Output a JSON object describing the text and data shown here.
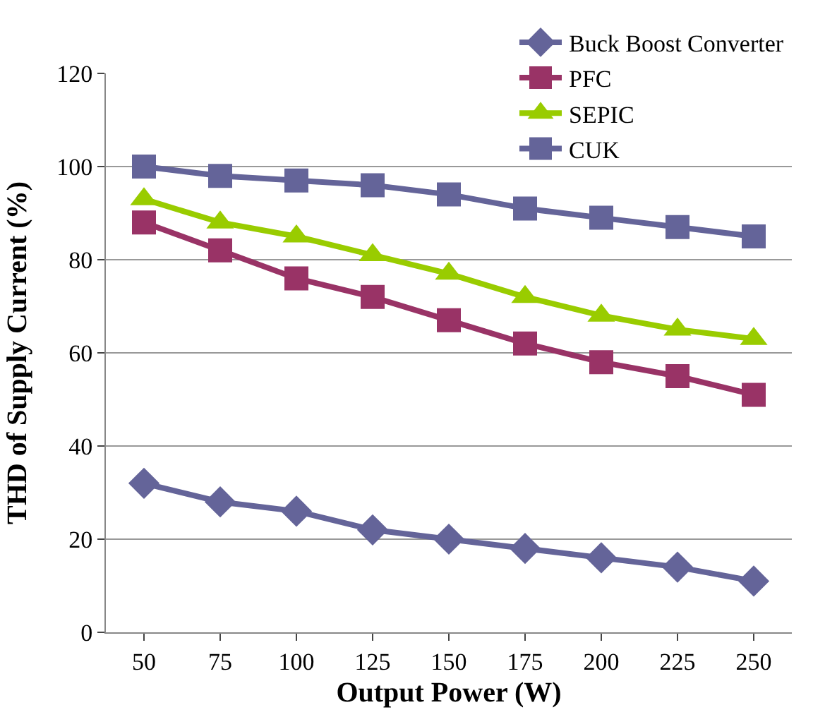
{
  "chart_data": {
    "type": "line",
    "xlabel": "Output Power (W)",
    "ylabel": "THD of Supply Current (%)",
    "categories": [
      "50",
      "75",
      "100",
      "125",
      "150",
      "175",
      "200",
      "225",
      "250"
    ],
    "series": [
      {
        "name": "Buck Boost Converter",
        "color": "#646499",
        "marker": "diamond",
        "values": [
          32,
          28,
          26,
          22,
          20,
          18,
          16,
          14,
          11
        ]
      },
      {
        "name": "PFC",
        "color": "#993366",
        "marker": "square",
        "values": [
          88,
          82,
          76,
          72,
          67,
          62,
          58,
          55,
          51
        ]
      },
      {
        "name": "SEPIC",
        "color": "#99cc00",
        "marker": "triangle",
        "values": [
          93,
          88,
          85,
          81,
          77,
          72,
          68,
          65,
          63
        ]
      },
      {
        "name": "CUK",
        "color": "#646499",
        "marker": "square",
        "values": [
          100,
          98,
          97,
          96,
          94,
          91,
          89,
          87,
          85
        ]
      }
    ],
    "ylim": [
      0,
      120
    ],
    "yticks": [
      0,
      20,
      40,
      60,
      80,
      100,
      120
    ],
    "grid": "y",
    "legend": "top right",
    "line_style": "solid"
  }
}
